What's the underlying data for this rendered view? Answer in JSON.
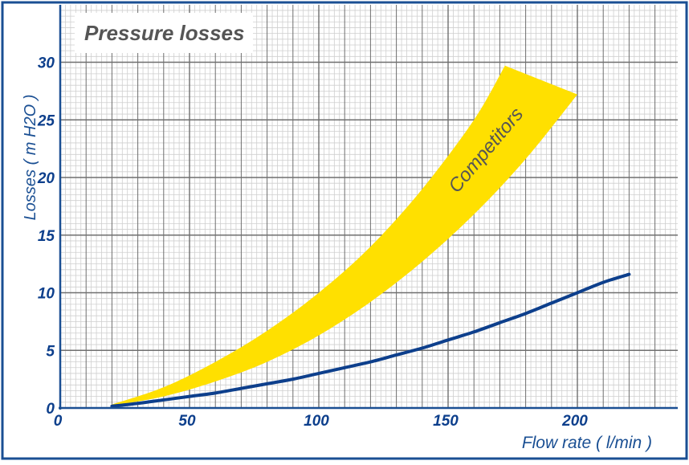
{
  "chart_data": {
    "type": "line",
    "title": "Pressure losses",
    "xlabel": "Flow rate ( l/min )",
    "ylabel": "Losses ( m H2O )",
    "xlim": [
      0,
      240
    ],
    "ylim": [
      0,
      35
    ],
    "x_ticks": [
      "0",
      "50",
      "100",
      "150",
      "200"
    ],
    "y_ticks": [
      "0",
      "5",
      "10",
      "15",
      "20",
      "25",
      "30"
    ],
    "grid": true,
    "colors": {
      "frame": "#1a4f93",
      "axis_label": "#1a4f93",
      "tick_label": "#0d3f8c",
      "product_line": "#0d3f8c",
      "band": "#ffe000",
      "title_text": "#555555",
      "major_grid": "#6f6f6f",
      "minor_grid": "#cfcfcf"
    },
    "series": [
      {
        "x": [
          20,
          30,
          40,
          50,
          60,
          70,
          80,
          90,
          100,
          110,
          120,
          130,
          140,
          150,
          160,
          170,
          180,
          190,
          200,
          210,
          220
        ],
        "y": [
          0.15,
          0.4,
          0.7,
          1.0,
          1.3,
          1.7,
          2.1,
          2.5,
          3.0,
          3.5,
          4.0,
          4.6,
          5.2,
          5.9,
          6.6,
          7.4,
          8.2,
          9.1,
          10.0,
          10.9,
          11.6
        ]
      }
    ],
    "band": {
      "label": "Competitors",
      "upper": {
        "x": [
          20,
          40,
          60,
          80,
          100,
          120,
          140,
          160,
          172
        ],
        "y": [
          0.3,
          1.8,
          4.0,
          6.7,
          10.0,
          14.0,
          19.0,
          25.0,
          29.7
        ]
      },
      "lower": {
        "x": [
          20,
          40,
          60,
          80,
          100,
          120,
          140,
          160,
          180,
          200
        ],
        "y": [
          0.2,
          1.0,
          2.3,
          4.0,
          6.3,
          9.2,
          12.7,
          16.8,
          21.6,
          27.2
        ]
      }
    }
  }
}
